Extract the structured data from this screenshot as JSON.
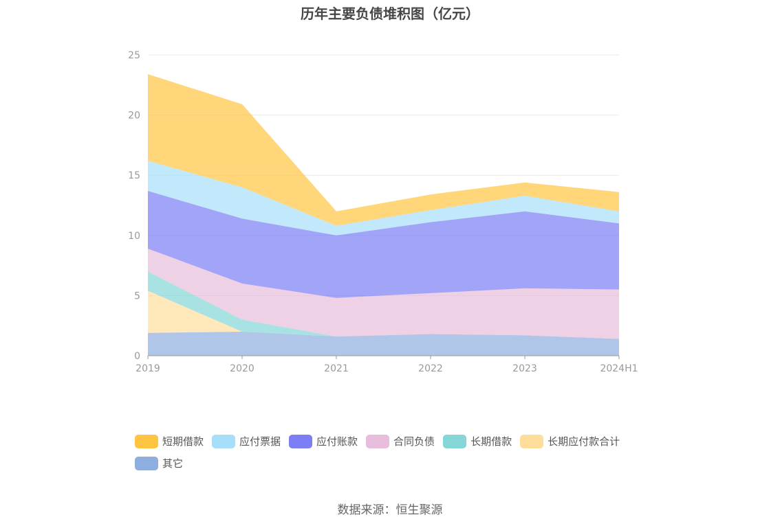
{
  "chart_data": {
    "type": "area",
    "stacked": true,
    "title": "历年主要负债堆积图（亿元）",
    "source": "数据来源：恒生聚源",
    "x": [
      "2019",
      "2020",
      "2021",
      "2022",
      "2023",
      "2024H1"
    ],
    "ylim": [
      0,
      25
    ],
    "yticks": [
      "0",
      "5",
      "10",
      "15",
      "20",
      "25"
    ],
    "grid": true,
    "legend_position": "bottom",
    "series": [
      {
        "name": "短期借款",
        "color": "#ffc542",
        "values": [
          7.2,
          6.9,
          1.2,
          1.3,
          1.1,
          1.6
        ]
      },
      {
        "name": "应付票据",
        "color": "#a7dffa",
        "values": [
          2.5,
          2.6,
          0.8,
          1.0,
          1.3,
          1.0
        ]
      },
      {
        "name": "应付账款",
        "color": "#7b7ef5",
        "values": [
          4.8,
          5.4,
          5.2,
          5.9,
          6.4,
          5.5
        ]
      },
      {
        "name": "合同负债",
        "color": "#e8bddb",
        "values": [
          1.9,
          3.0,
          3.2,
          3.4,
          3.9,
          4.1
        ]
      },
      {
        "name": "长期借款",
        "color": "#85d6d6",
        "values": [
          1.6,
          1.0,
          0.0,
          0.0,
          0.0,
          0.0
        ]
      },
      {
        "name": "长期应付款合计",
        "color": "#ffde9c",
        "values": [
          3.5,
          0.0,
          0.0,
          0.0,
          0.0,
          0.0
        ]
      },
      {
        "name": "其它",
        "color": "#8eaee0",
        "values": [
          1.9,
          2.0,
          1.6,
          1.8,
          1.7,
          1.4
        ]
      }
    ]
  }
}
